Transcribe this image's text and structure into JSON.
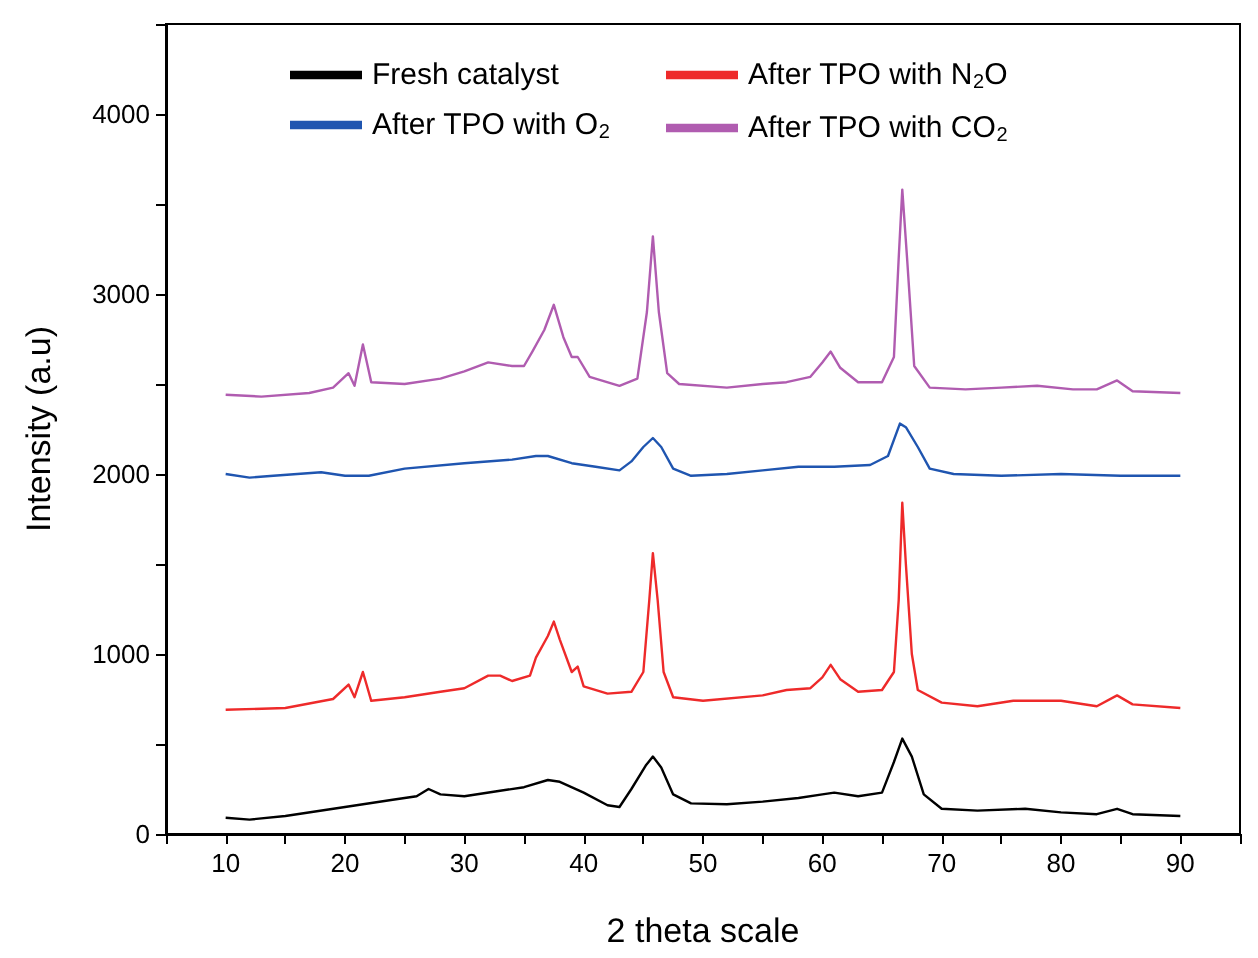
{
  "chart_data": {
    "type": "line",
    "xlabel": "2 theta scale",
    "ylabel": "Intensity (a.u)",
    "xlim": [
      5,
      95
    ],
    "xticks": [
      {
        "value": 5,
        "label": null
      },
      10,
      {
        "value": 15,
        "label": null
      },
      20,
      {
        "value": 25,
        "label": null
      },
      30,
      {
        "value": 35,
        "label": null
      },
      40,
      {
        "value": 45,
        "label": null
      },
      50,
      {
        "value": 55,
        "label": null
      },
      60,
      {
        "value": 65,
        "label": null
      },
      70,
      {
        "value": 75,
        "label": null
      },
      80,
      {
        "value": 85,
        "label": null
      },
      90,
      {
        "value": 95,
        "label": null
      }
    ],
    "ylim": [
      0,
      4500
    ],
    "yticks": [
      0,
      {
        "value": 500,
        "label": null
      },
      1000,
      {
        "value": 1500,
        "label": null
      },
      2000,
      {
        "value": 2500,
        "label": null
      },
      3000,
      {
        "value": 3500,
        "label": null
      },
      4000,
      {
        "value": 4500,
        "label": null
      }
    ],
    "grid": false,
    "legend": "top",
    "marker": "none",
    "line_style": "solid",
    "series": [
      {
        "name": "Fresh catalyst",
        "color": "#000000",
        "x": [
          10,
          12,
          15,
          20,
          24,
          26,
          27,
          28,
          30,
          33,
          35,
          37,
          38,
          40,
          42,
          43,
          44,
          45.2,
          45.8,
          46.5,
          47.5,
          49,
          52,
          55,
          58,
          60,
          61,
          63,
          65,
          66,
          66.7,
          67.5,
          68.5,
          70,
          73,
          77,
          80,
          83,
          84.7,
          86,
          90
        ],
        "values": [
          90,
          80,
          100,
          150,
          190,
          210,
          250,
          220,
          210,
          240,
          260,
          300,
          290,
          230,
          160,
          150,
          250,
          380,
          430,
          370,
          220,
          170,
          165,
          180,
          200,
          220,
          230,
          210,
          230,
          400,
          530,
          430,
          220,
          140,
          130,
          140,
          120,
          110,
          140,
          110,
          100
        ]
      },
      {
        "name": "After TPO with N$_{2}$O",
        "color": "#ee2a2a",
        "x": [
          10,
          15,
          19,
          20.3,
          20.8,
          21.5,
          22.2,
          25,
          28,
          30,
          32,
          33,
          34,
          35.5,
          36,
          37,
          37.5,
          38,
          39,
          39.5,
          40,
          42,
          44,
          45,
          45.5,
          45.8,
          46.2,
          46.7,
          47.5,
          50,
          55,
          57,
          59,
          60,
          60.7,
          61.5,
          63,
          65,
          66,
          66.4,
          66.7,
          67,
          67.5,
          68,
          70,
          73,
          76,
          80,
          83,
          84.7,
          86,
          90
        ],
        "values": [
          690,
          700,
          750,
          830,
          760,
          900,
          740,
          760,
          790,
          810,
          880,
          880,
          850,
          880,
          980,
          1100,
          1180,
          1080,
          900,
          930,
          820,
          780,
          790,
          900,
          1300,
          1560,
          1300,
          900,
          760,
          740,
          770,
          800,
          810,
          870,
          940,
          860,
          790,
          800,
          900,
          1300,
          1840,
          1500,
          1000,
          800,
          730,
          710,
          740,
          740,
          710,
          770,
          720,
          700
        ]
      },
      {
        "name": "After TPO with O$_{2}$",
        "color": "#1f55b0",
        "x": [
          10,
          12,
          14,
          18,
          20,
          22,
          25,
          30,
          34,
          36,
          37,
          39,
          41,
          43,
          44,
          45,
          45.8,
          46.5,
          47.5,
          49,
          52,
          55,
          58,
          61,
          64,
          65.5,
          66.5,
          67,
          68,
          69,
          71,
          75,
          80,
          85,
          90
        ],
        "values": [
          2000,
          1980,
          1990,
          2010,
          1990,
          1990,
          2030,
          2060,
          2080,
          2100,
          2100,
          2060,
          2040,
          2020,
          2070,
          2150,
          2200,
          2150,
          2030,
          1990,
          2000,
          2020,
          2040,
          2040,
          2050,
          2100,
          2280,
          2260,
          2150,
          2030,
          2000,
          1990,
          2000,
          1990,
          1990
        ]
      },
      {
        "name": "After TPO with CO$_{2}$",
        "color": "#b05cb0",
        "x": [
          10,
          13,
          17,
          19,
          20.3,
          20.8,
          21.5,
          22.2,
          25,
          28,
          30,
          32,
          34,
          35,
          35.7,
          36.7,
          37.5,
          38.3,
          39,
          39.5,
          40.5,
          43,
          44.5,
          45.3,
          45.8,
          46.3,
          47,
          48,
          52,
          55,
          57,
          59,
          60,
          60.7,
          61.5,
          63,
          65,
          66,
          66.4,
          66.7,
          67.1,
          67.7,
          69,
          72,
          75,
          78,
          81,
          83,
          84.7,
          86,
          90
        ],
        "values": [
          2440,
          2430,
          2450,
          2480,
          2560,
          2490,
          2720,
          2510,
          2500,
          2530,
          2570,
          2620,
          2600,
          2600,
          2680,
          2800,
          2940,
          2760,
          2650,
          2650,
          2540,
          2490,
          2530,
          2900,
          3320,
          2900,
          2560,
          2500,
          2480,
          2500,
          2510,
          2540,
          2620,
          2680,
          2590,
          2510,
          2510,
          2650,
          3200,
          3580,
          3200,
          2600,
          2480,
          2470,
          2480,
          2490,
          2470,
          2470,
          2520,
          2460,
          2450
        ]
      }
    ]
  }
}
